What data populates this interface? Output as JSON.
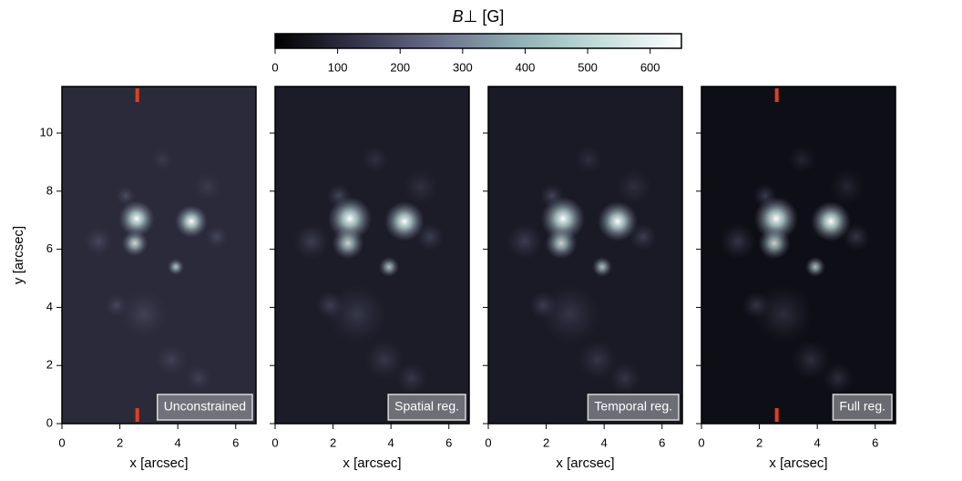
{
  "chart_data": {
    "type": "image",
    "colorbar": {
      "symbol": "B⊥",
      "unit": "[G]",
      "lim": [
        0,
        650
      ],
      "ticks": [
        0,
        100,
        200,
        300,
        400,
        500,
        600
      ],
      "colormap": [
        "#000000",
        "#34344a",
        "#6a6f8c",
        "#8fb0b4",
        "#c2dedb",
        "#ffffff"
      ]
    },
    "xlabel": "x [arcsec]",
    "ylabel": "y [arcsec]",
    "xlim": [
      0,
      6.7
    ],
    "xticks": [
      0,
      2,
      4,
      6
    ],
    "ylim": [
      0,
      11.6
    ],
    "yticks": [
      0,
      2,
      4,
      6,
      8,
      10
    ],
    "marker_color": "#e0401a",
    "panels": [
      {
        "title": "Unconstrained",
        "marker_x": 2.6
      },
      {
        "title": "Spatial reg."
      },
      {
        "title": "Temporal reg."
      },
      {
        "title": "Full reg.",
        "marker_x": 2.6
      }
    ]
  }
}
